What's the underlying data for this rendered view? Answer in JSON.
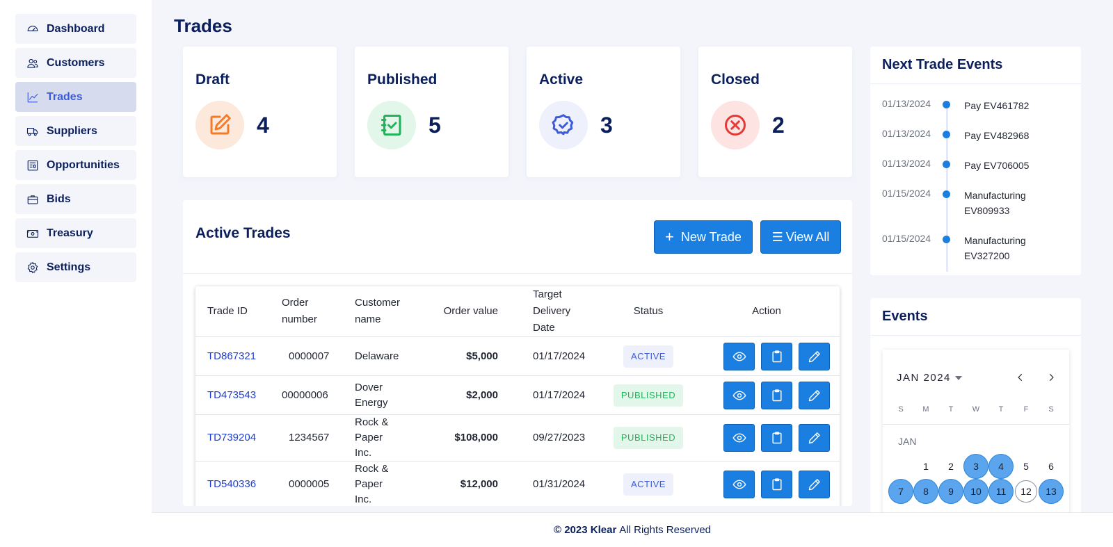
{
  "sidebar": {
    "items": [
      {
        "label": "Dashboard",
        "icon": "gauge-icon"
      },
      {
        "label": "Customers",
        "icon": "users-icon"
      },
      {
        "label": "Trades",
        "icon": "chart-line-icon"
      },
      {
        "label": "Suppliers",
        "icon": "truck-icon"
      },
      {
        "label": "Opportunities",
        "icon": "newspaper-icon"
      },
      {
        "label": "Bids",
        "icon": "briefcase-icon"
      },
      {
        "label": "Treasury",
        "icon": "money-icon"
      },
      {
        "label": "Settings",
        "icon": "gear-icon"
      }
    ],
    "active": "Trades"
  },
  "page": {
    "title": "Trades"
  },
  "stats": [
    {
      "title": "Draft",
      "value": "4",
      "icon": "edit-icon",
      "color": "#f47b2a",
      "bg": "#fde9dc"
    },
    {
      "title": "Published",
      "value": "5",
      "icon": "checklist-icon",
      "color": "#22b25a",
      "bg": "#e2f6e9"
    },
    {
      "title": "Active",
      "value": "3",
      "icon": "badge-check-icon",
      "color": "#3b5bdb",
      "bg": "#eef0fb"
    },
    {
      "title": "Closed",
      "value": "2",
      "icon": "close-circle-icon",
      "color": "#e53935",
      "bg": "#fde3e1"
    }
  ],
  "active_trades": {
    "title": "Active Trades",
    "new_trade_label": "New Trade",
    "view_all_label": "View All",
    "columns": {
      "trade_id": "Trade ID",
      "order_number": "Order number",
      "customer_name": "Customer name",
      "order_value": "Order value",
      "target_delivery": "Target Delivery Date",
      "status": "Status",
      "action": "Action"
    },
    "rows": [
      {
        "trade_id": "TD867321",
        "order_number": "0000007",
        "customer": "Delaware",
        "value": "$5,000",
        "date": "01/17/2024",
        "status": "ACTIVE"
      },
      {
        "trade_id": "TD473543",
        "order_number": "00000006",
        "customer": "Dover Energy",
        "value": "$2,000",
        "date": "01/17/2024",
        "status": "PUBLISHED"
      },
      {
        "trade_id": "TD739204",
        "order_number": "1234567",
        "customer": "Rock & Paper Inc.",
        "value": "$108,000",
        "date": "09/27/2023",
        "status": "PUBLISHED"
      },
      {
        "trade_id": "TD540336",
        "order_number": "0000005",
        "customer": "Rock & Paper Inc.",
        "value": "$12,000",
        "date": "01/31/2024",
        "status": "ACTIVE"
      }
    ]
  },
  "next_events": {
    "title": "Next Trade Events",
    "items": [
      {
        "date": "01/13/2024",
        "text": "Pay EV461782"
      },
      {
        "date": "01/13/2024",
        "text": "Pay EV482968"
      },
      {
        "date": "01/13/2024",
        "text": "Pay EV706005"
      },
      {
        "date": "01/15/2024",
        "text": "Manufacturing EV809933"
      },
      {
        "date": "01/15/2024",
        "text": "Manufacturing EV327200"
      }
    ]
  },
  "events_calendar": {
    "title": "Events",
    "month_label": "JAN 2024",
    "weekdays": [
      "S",
      "M",
      "T",
      "W",
      "T",
      "F",
      "S"
    ],
    "month_name": "JAN",
    "first_weekday_offset": 1,
    "visible_days": [
      "1",
      "2",
      "3",
      "4",
      "5",
      "6",
      "7",
      "8",
      "9",
      "10",
      "11",
      "12",
      "13"
    ],
    "event_days": [
      "3",
      "4",
      "7",
      "8",
      "9",
      "10",
      "11",
      "13"
    ],
    "today": "12"
  },
  "footer": {
    "copyright": "© 2023 Klear",
    "rights": "All Rights Reserved"
  }
}
